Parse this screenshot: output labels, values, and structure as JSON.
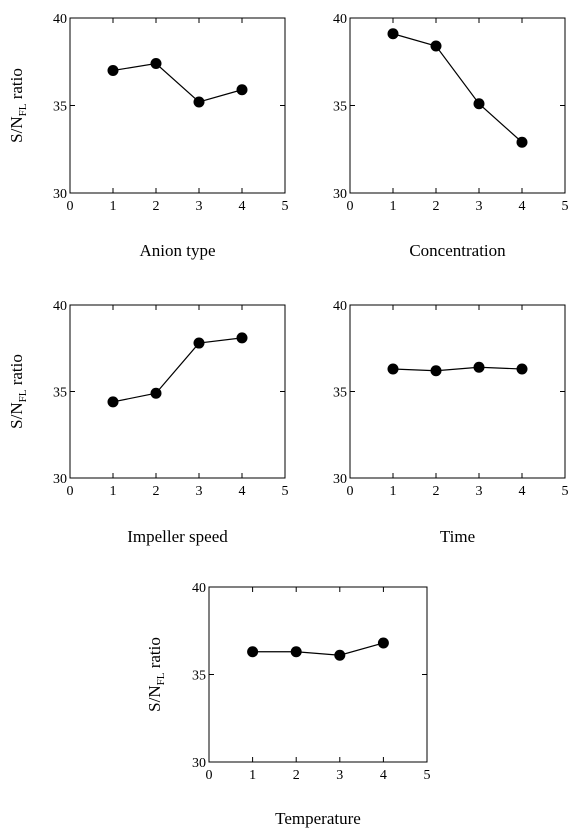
{
  "chart_data": [
    {
      "type": "line",
      "xlabel": "Anion type",
      "ylabel": {
        "prefix": "S/N",
        "sub": "FL",
        "suffix": " ratio"
      },
      "xlim": [
        0,
        5
      ],
      "ylim": [
        30,
        40
      ],
      "xticks": [
        "0",
        "1",
        "2",
        "3",
        "4",
        "5"
      ],
      "yticks": [
        "30",
        "35",
        "40"
      ],
      "x": [
        1,
        2,
        3,
        4
      ],
      "y": [
        37.0,
        37.4,
        35.2,
        35.9
      ],
      "grid": false
    },
    {
      "type": "line",
      "xlabel": "Concentration",
      "ylabel": null,
      "xlim": [
        0,
        5
      ],
      "ylim": [
        30,
        40
      ],
      "xticks": [
        "0",
        "1",
        "2",
        "3",
        "4",
        "5"
      ],
      "yticks": [
        "30",
        "35",
        "40"
      ],
      "x": [
        1,
        2,
        3,
        4
      ],
      "y": [
        39.1,
        38.4,
        35.1,
        32.9
      ],
      "grid": false
    },
    {
      "type": "line",
      "xlabel": "Impeller speed",
      "ylabel": {
        "prefix": "S/N",
        "sub": "FL",
        "suffix": " ratio"
      },
      "xlim": [
        0,
        5
      ],
      "ylim": [
        30,
        40
      ],
      "xticks": [
        "0",
        "1",
        "2",
        "3",
        "4",
        "5"
      ],
      "yticks": [
        "30",
        "35",
        "40"
      ],
      "x": [
        1,
        2,
        3,
        4
      ],
      "y": [
        34.4,
        34.9,
        37.8,
        38.1
      ],
      "grid": false
    },
    {
      "type": "line",
      "xlabel": "Time",
      "ylabel": null,
      "xlim": [
        0,
        5
      ],
      "ylim": [
        30,
        40
      ],
      "xticks": [
        "0",
        "1",
        "2",
        "3",
        "4",
        "5"
      ],
      "yticks": [
        "30",
        "35",
        "40"
      ],
      "x": [
        1,
        2,
        3,
        4
      ],
      "y": [
        36.3,
        36.2,
        36.4,
        36.3
      ],
      "grid": false
    },
    {
      "type": "line",
      "xlabel": "Temperature",
      "ylabel": {
        "prefix": "S/N",
        "sub": "FL",
        "suffix": " ratio"
      },
      "xlim": [
        0,
        5
      ],
      "ylim": [
        30,
        40
      ],
      "xticks": [
        "0",
        "1",
        "2",
        "3",
        "4",
        "5"
      ],
      "yticks": [
        "30",
        "35",
        "40"
      ],
      "x": [
        1,
        2,
        3,
        4
      ],
      "y": [
        36.3,
        36.3,
        36.1,
        36.8
      ],
      "grid": false
    }
  ]
}
